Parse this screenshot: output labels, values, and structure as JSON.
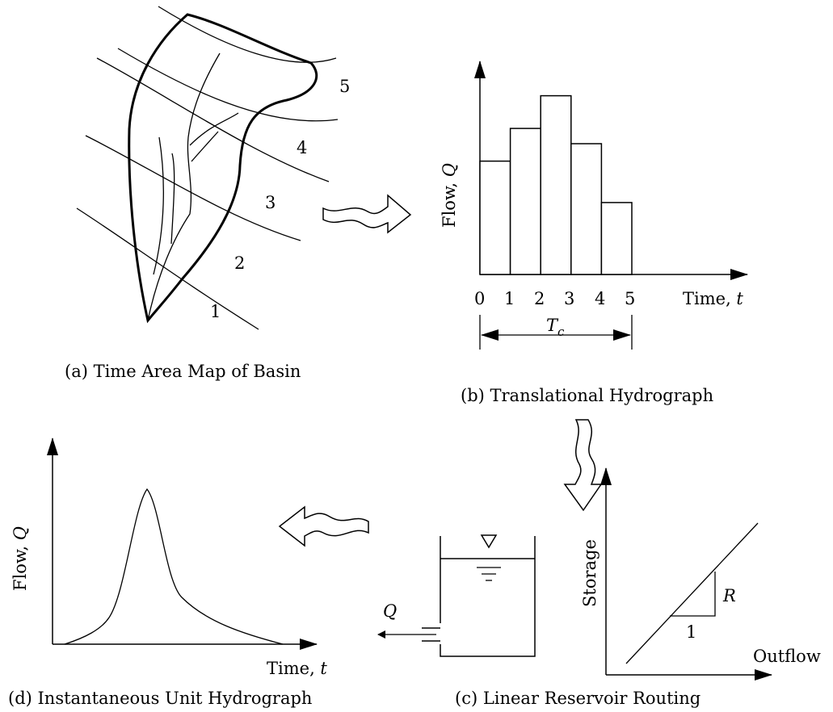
{
  "panels": {
    "a": {
      "caption": "(a) Time Area Map of Basin",
      "zones": [
        "1",
        "2",
        "3",
        "4",
        "5"
      ]
    },
    "b": {
      "caption": "(b) Translational Hydrograph",
      "ylabel_text": "Flow, ",
      "ylabel_var": "Q",
      "xlabel_text": "Time, ",
      "xlabel_var": "t",
      "ticks": [
        "0",
        "1",
        "2",
        "3",
        "4",
        "5"
      ],
      "tc_base": "T",
      "tc_sub": "c",
      "bar_values": [
        0.52,
        0.67,
        0.82,
        0.6,
        0.33
      ]
    },
    "c": {
      "caption": "(c) Linear Reservoir Routing",
      "outlet_label": "Q",
      "storage_label": "Storage",
      "outflow_label": "Outflow",
      "slope_rise": "R",
      "slope_run": "1"
    },
    "d": {
      "caption": "(d) Instantaneous Unit Hydrograph",
      "ylabel_text": "Flow, ",
      "ylabel_var": "Q",
      "xlabel_text": "Time, ",
      "xlabel_var": "t"
    }
  }
}
